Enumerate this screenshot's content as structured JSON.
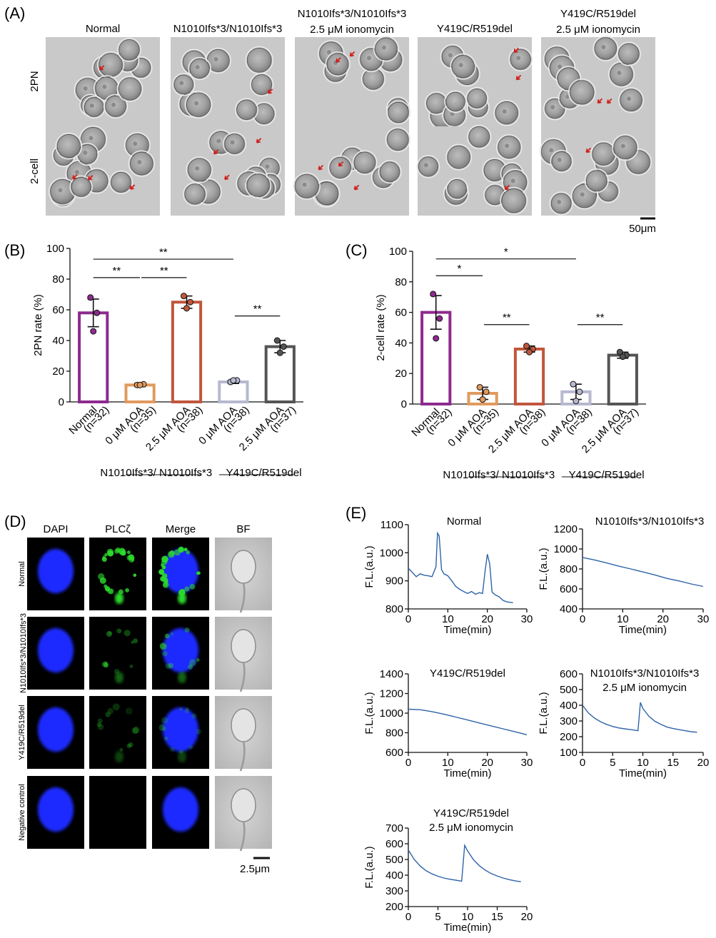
{
  "panel_letters": {
    "a": "(A)",
    "b": "(B)",
    "c": "(C)",
    "d": "(D)",
    "e": "(E)"
  },
  "panel_a": {
    "col_titles": [
      [
        "Normal"
      ],
      [
        "N1010Ifs*3/N1010Ifs*3"
      ],
      [
        "N1010Ifs*3/N1010Ifs*3",
        "2.5 μM ionomycin"
      ],
      [
        "Y419C/R519del"
      ],
      [
        "Y419C/R519del",
        "2.5 μM ionomycin"
      ]
    ],
    "row_labels": [
      "2PN",
      "2-cell"
    ],
    "scale_bar": "50μm"
  },
  "panel_d": {
    "col_titles": [
      "DAPI",
      "PLCζ",
      "Merge",
      "BF"
    ],
    "row_labels": [
      "Normal",
      "N1010Ifs*3/N1010Ifs*3",
      "Y419C/R519del",
      "Negative control"
    ],
    "scale_bar": "2.5μm"
  },
  "bar_x_labels": [
    [
      "Normal",
      "(n=32)"
    ],
    [
      "0 μM AOA",
      "(n=35)"
    ],
    [
      "2.5 μM AOA",
      "(n=38)"
    ],
    [
      "0 μM AOA",
      "(n=38)"
    ],
    [
      "2.5 μM AOA",
      "(n=37)"
    ]
  ],
  "bar_groups": [
    "N1010Ifs*3/ N1010Ifs*3",
    "Y419C/R519del"
  ],
  "bar_colors": [
    "#8e2a8e",
    "#e09a5e",
    "#c0563c",
    "#b6b9cf",
    "#555555"
  ],
  "chart_data": [
    {
      "id": "B",
      "type": "bar",
      "ylabel": "2PN rate (%)",
      "ylim": [
        0,
        100
      ],
      "yticks": [
        0,
        20,
        40,
        60,
        80,
        100
      ],
      "categories": [
        "Normal (n=32)",
        "0 μM AOA (n=35)",
        "2.5 μM AOA (n=38)",
        "0 μM AOA (n=38)",
        "2.5 μM AOA (n=37)"
      ],
      "values": [
        58,
        11,
        65,
        13,
        36
      ],
      "errors": [
        9,
        1,
        4,
        1,
        4
      ],
      "points": [
        [
          68,
          58,
          46
        ],
        [
          11,
          11.5,
          11
        ],
        [
          69,
          65,
          61
        ],
        [
          13,
          14,
          14
        ],
        [
          40,
          36,
          32
        ]
      ],
      "significance": [
        {
          "from": 0,
          "to": 3,
          "label": "**",
          "level": 93
        },
        {
          "from": 0,
          "to": 1,
          "label": "**",
          "level": 81
        },
        {
          "from": 1,
          "to": 2,
          "label": "**",
          "level": 81
        },
        {
          "from": 3,
          "to": 4,
          "label": "**",
          "level": 56
        }
      ]
    },
    {
      "id": "C",
      "type": "bar",
      "ylabel": "2-cell rate (%)",
      "ylim": [
        0,
        100
      ],
      "yticks": [
        0,
        20,
        40,
        60,
        80,
        100
      ],
      "categories": [
        "Normal (n=32)",
        "0 μM AOA (n=35)",
        "2.5 μM AOA (n=38)",
        "0 μM AOA (n=38)",
        "2.5 μM AOA (n=37)"
      ],
      "values": [
        60,
        7,
        36,
        8,
        32
      ],
      "errors": [
        11,
        4,
        2,
        5,
        2
      ],
      "points": [
        [
          72,
          56,
          43
        ],
        [
          11,
          8,
          3
        ],
        [
          38,
          36,
          34
        ],
        [
          13,
          8,
          2
        ],
        [
          34,
          32,
          31
        ]
      ],
      "significance": [
        {
          "from": 0,
          "to": 3,
          "label": "*",
          "level": 95
        },
        {
          "from": 0,
          "to": 1,
          "label": "*",
          "level": 84
        },
        {
          "from": 1,
          "to": 2,
          "label": "**",
          "level": 52
        },
        {
          "from": 3,
          "to": 4,
          "label": "**",
          "level": 52
        }
      ]
    },
    {
      "id": "E1",
      "type": "line",
      "title": [
        "Normal"
      ],
      "xlabel": "Time(min)",
      "ylabel": "F.L.(a.u.)",
      "xlim": [
        0,
        30
      ],
      "ylim": [
        800,
        1100
      ],
      "xticks": [
        0,
        10,
        20,
        30
      ],
      "yticks": [
        800,
        900,
        1000,
        1100
      ],
      "x": [
        0,
        1,
        2,
        3,
        4,
        5,
        6,
        7,
        7.4,
        7.8,
        8.4,
        9,
        10,
        11,
        12,
        13,
        14,
        15,
        16,
        17,
        18,
        18.8,
        19.4,
        20,
        20.6,
        21.2,
        22,
        23,
        24,
        25,
        26.5
      ],
      "y": [
        945,
        930,
        915,
        925,
        920,
        918,
        915,
        950,
        1070,
        1060,
        940,
        925,
        918,
        900,
        880,
        870,
        862,
        855,
        862,
        852,
        858,
        855,
        930,
        995,
        960,
        860,
        850,
        843,
        830,
        825,
        822
      ]
    },
    {
      "id": "E2",
      "type": "line",
      "title": [
        "N1010Ifs*3/N1010Ifs*3"
      ],
      "xlabel": "Time(min)",
      "ylabel": "F.L.(a.u.)",
      "xlim": [
        0,
        30
      ],
      "ylim": [
        400,
        1200
      ],
      "xticks": [
        0,
        10,
        20,
        30
      ],
      "yticks": [
        400,
        600,
        800,
        1000,
        1200
      ],
      "x": [
        0,
        3,
        6,
        9,
        12,
        15,
        18,
        21,
        24,
        27,
        30
      ],
      "y": [
        915,
        890,
        860,
        828,
        800,
        770,
        740,
        705,
        680,
        650,
        625
      ]
    },
    {
      "id": "E3",
      "type": "line",
      "title": [
        "Y419C/R519del"
      ],
      "xlabel": "Time(min)",
      "ylabel": "F.L.(a.u.)",
      "xlim": [
        0,
        30
      ],
      "ylim": [
        600,
        1400
      ],
      "xticks": [
        0,
        10,
        20,
        30
      ],
      "yticks": [
        600,
        800,
        1000,
        1200,
        1400
      ],
      "x": [
        0,
        3,
        6,
        9,
        12,
        15,
        18,
        21,
        24,
        27,
        30
      ],
      "y": [
        1040,
        1035,
        1015,
        990,
        960,
        930,
        900,
        870,
        840,
        810,
        780
      ]
    },
    {
      "id": "E4",
      "type": "line",
      "title": [
        "N1010Ifs*3/N1010Ifs*3",
        "2.5 μM ionomycin"
      ],
      "xlabel": "Time(min)",
      "ylabel": "F.L.(a.u.)",
      "xlim": [
        0,
        20
      ],
      "ylim": [
        100,
        600
      ],
      "xticks": [
        0,
        5,
        10,
        15,
        20
      ],
      "yticks": [
        100,
        200,
        300,
        400,
        500,
        600
      ],
      "x": [
        0,
        1,
        2,
        3,
        4,
        5,
        6,
        7,
        8,
        9.2,
        9.6,
        10,
        11,
        12,
        13,
        14,
        15,
        16,
        17,
        18,
        19
      ],
      "y": [
        400,
        350,
        318,
        295,
        278,
        265,
        256,
        250,
        245,
        238,
        418,
        380,
        330,
        298,
        278,
        262,
        252,
        245,
        238,
        232,
        228
      ]
    },
    {
      "id": "E5",
      "type": "line",
      "title": [
        "Y419C/R519del",
        "2.5 μM ionomycin"
      ],
      "xlabel": "Time(min)",
      "ylabel": "F.L.(a.u.)",
      "xlim": [
        0,
        20
      ],
      "ylim": [
        200,
        700
      ],
      "xticks": [
        0,
        5,
        10,
        15,
        20
      ],
      "yticks": [
        200,
        300,
        400,
        500,
        600,
        700
      ],
      "x": [
        0,
        1,
        2,
        3,
        4,
        5,
        6,
        7,
        8,
        9,
        9.5,
        10,
        11,
        12,
        13,
        14,
        15,
        16,
        17,
        18,
        19
      ],
      "y": [
        560,
        500,
        458,
        428,
        408,
        393,
        382,
        374,
        368,
        362,
        590,
        555,
        498,
        460,
        432,
        410,
        395,
        382,
        372,
        364,
        358
      ]
    }
  ]
}
